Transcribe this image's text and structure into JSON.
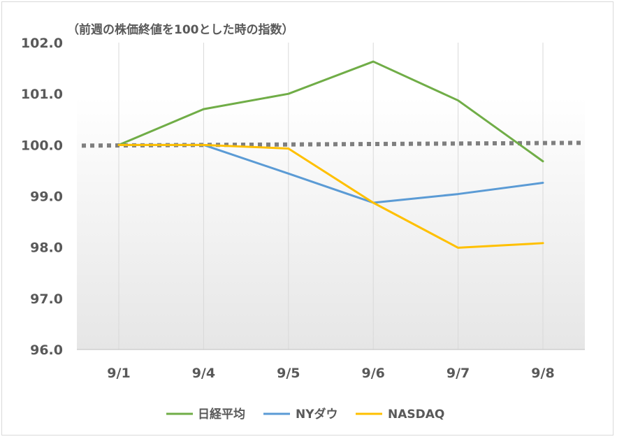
{
  "chart_data": {
    "type": "line",
    "title": "（前週の株価終値を100とした時の指数）",
    "categories": [
      "9/1",
      "9/4",
      "9/5",
      "9/6",
      "9/7",
      "9/8"
    ],
    "ylim": [
      96.0,
      102.0
    ],
    "yticks": [
      "96.0",
      "97.0",
      "98.0",
      "99.0",
      "100.0",
      "101.0",
      "102.0"
    ],
    "grid": "vertical",
    "legend_position": "bottom",
    "series": [
      {
        "name": "日経平均",
        "color": "#70ad47",
        "values": [
          100.0,
          100.7,
          101.0,
          101.63,
          100.87,
          99.68
        ]
      },
      {
        "name": "NYダウ",
        "color": "#5b9bd5",
        "values": [
          100.0,
          100.0,
          99.44,
          98.87,
          99.04,
          99.26
        ]
      },
      {
        "name": "NASDAQ",
        "color": "#ffc000",
        "values": [
          100.0,
          100.0,
          99.93,
          98.87,
          97.99,
          98.08
        ]
      }
    ],
    "reference_line": {
      "value": 100.0,
      "color": "#7f7f7f",
      "style": "dotted"
    }
  }
}
